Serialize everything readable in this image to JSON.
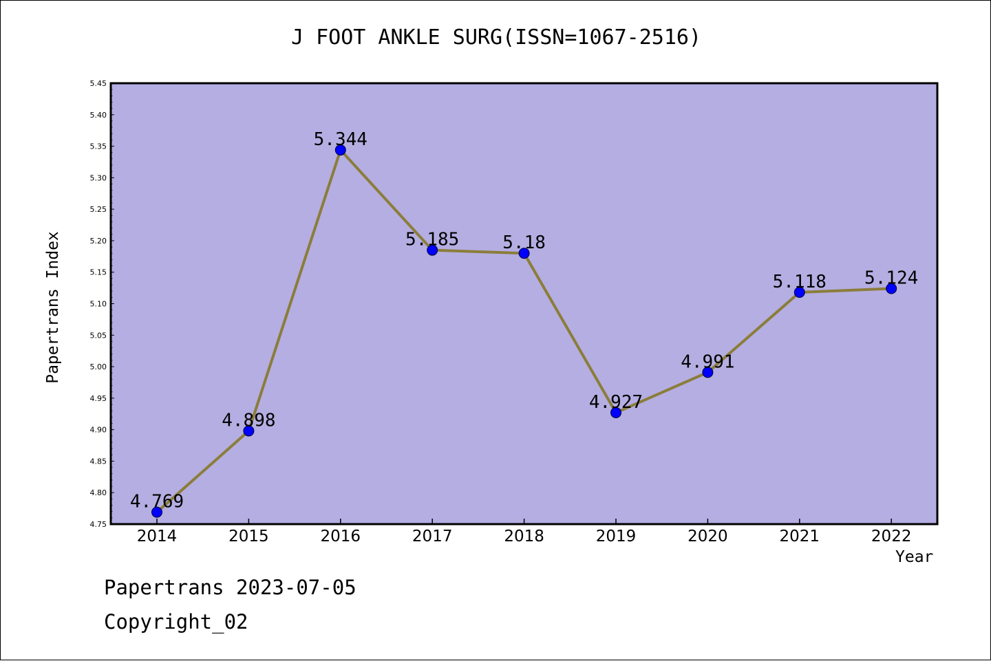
{
  "title": "J FOOT ANKLE SURG(ISSN=1067-2516)",
  "footer": {
    "line1": "Papertrans 2023-07-05",
    "line2": "Copyright_02"
  },
  "colors": {
    "plot_background": "#b4aee2",
    "line": "#8b7d3a",
    "marker": "#0000ff"
  },
  "chart_data": {
    "type": "line",
    "title": "J FOOT ANKLE SURG(ISSN=1067-2516)",
    "xlabel": "Year",
    "ylabel": "Papertrans Index",
    "categories": [
      "2014",
      "2015",
      "2016",
      "2017",
      "2018",
      "2019",
      "2020",
      "2021",
      "2022"
    ],
    "values": [
      4.769,
      4.898,
      5.344,
      5.185,
      5.18,
      4.927,
      4.991,
      5.118,
      5.124
    ],
    "value_labels": [
      "4.769",
      "4.898",
      "5.344",
      "5.185",
      "5.18",
      "4.927",
      "4.991",
      "5.118",
      "5.124"
    ],
    "ylim": [
      4.75,
      5.45
    ],
    "yticks": [
      "4.75",
      "4.80",
      "4.85",
      "4.90",
      "4.95",
      "5.00",
      "5.05",
      "5.10",
      "5.15",
      "5.20",
      "5.25",
      "5.30",
      "5.35",
      "5.40",
      "5.45"
    ],
    "grid": false,
    "legend": "none"
  }
}
